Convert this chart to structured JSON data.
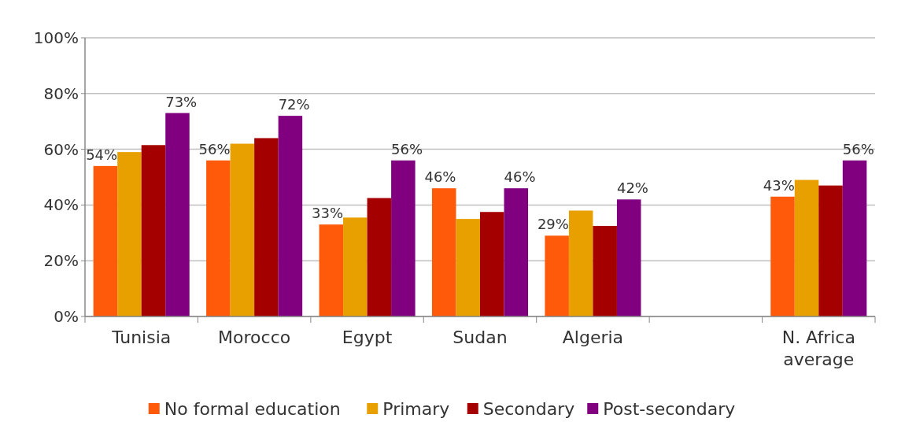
{
  "chart_data": {
    "type": "bar",
    "categories": [
      "Tunisia",
      "Morocco",
      "Egypt",
      "Sudan",
      "Algeria",
      null,
      "N. Africa average"
    ],
    "series": [
      {
        "name": "No formal education",
        "color": "#ff5a0a",
        "values": [
          54,
          56,
          33,
          46,
          29,
          null,
          43
        ],
        "value_labels": [
          "54%",
          "56%",
          "33%",
          "46%",
          "29%",
          null,
          "43%"
        ]
      },
      {
        "name": "Primary",
        "color": "#e8a000",
        "values": [
          59,
          62,
          35.5,
          35,
          38,
          null,
          49
        ]
      },
      {
        "name": "Secondary",
        "color": "#a50000",
        "values": [
          61.5,
          64,
          42.5,
          37.5,
          32.5,
          null,
          47
        ]
      },
      {
        "name": "Post-secondary",
        "color": "#800080",
        "values": [
          73,
          72,
          56,
          46,
          42,
          null,
          56
        ],
        "value_labels": [
          "73%",
          "72%",
          "56%",
          "46%",
          "42%",
          null,
          "56%"
        ]
      }
    ],
    "ylim": [
      0,
      100
    ],
    "yticks": [
      {
        "value": 0,
        "label": "0%"
      },
      {
        "value": 20,
        "label": "20%"
      },
      {
        "value": 40,
        "label": "40%"
      },
      {
        "value": 60,
        "label": "60%"
      },
      {
        "value": 80,
        "label": "80%"
      },
      {
        "value": 100,
        "label": "100%"
      }
    ],
    "grid": "y",
    "legend": "bottom"
  }
}
